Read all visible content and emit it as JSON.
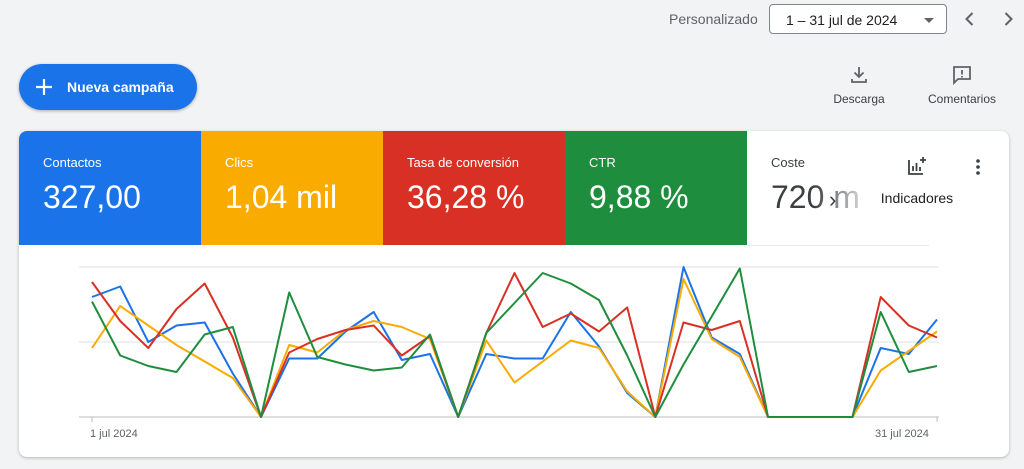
{
  "period": {
    "label": "Personalizado",
    "value": "1 – 31 jul de 2024"
  },
  "fab": {
    "label": "Nueva campaña"
  },
  "tools": {
    "download": "Descarga",
    "feedback": "Comentarios"
  },
  "metrics": [
    {
      "name": "Contactos",
      "value": "327,00",
      "color": "#1a73e8"
    },
    {
      "name": "Clics",
      "value": "1,04 mil",
      "color": "#f9ab00"
    },
    {
      "name": "Tasa de conversión",
      "value": "36,28 %",
      "color": "#d93025"
    },
    {
      "name": "CTR",
      "value": "9,88 %",
      "color": "#1e8e3e"
    },
    {
      "name": "Coste",
      "value": "720 m"
    }
  ],
  "indicators_label": "Indicadores",
  "chart_data": {
    "type": "line",
    "x_labels": [
      "1 jul 2024",
      "31 jul 2024"
    ],
    "x": [
      1,
      2,
      3,
      4,
      5,
      6,
      7,
      8,
      9,
      10,
      11,
      12,
      13,
      14,
      15,
      16,
      17,
      18,
      19,
      20,
      21,
      22,
      23,
      24,
      25,
      26,
      27,
      28,
      29,
      30,
      31
    ],
    "ylim": [
      0,
      1
    ],
    "grid": true,
    "series": [
      {
        "metric": "Contactos",
        "color": "#1a73e8",
        "values": [
          0.8,
          0.87,
          0.5,
          0.61,
          0.63,
          0.29,
          0.0,
          0.39,
          0.39,
          0.57,
          0.7,
          0.38,
          0.42,
          0.0,
          0.42,
          0.39,
          0.39,
          0.7,
          0.47,
          0.16,
          0.0,
          1.0,
          0.53,
          0.42,
          0.0,
          0.0,
          0.0,
          0.0,
          0.46,
          0.42,
          0.65
        ]
      },
      {
        "metric": "Clics",
        "color": "#f9ab00",
        "values": [
          0.46,
          0.74,
          0.61,
          0.48,
          0.37,
          0.26,
          0.0,
          0.48,
          0.43,
          0.58,
          0.64,
          0.6,
          0.52,
          0.0,
          0.51,
          0.23,
          0.37,
          0.51,
          0.46,
          0.17,
          0.0,
          0.92,
          0.52,
          0.4,
          0.0,
          0.0,
          0.0,
          0.0,
          0.31,
          0.44,
          0.57
        ]
      },
      {
        "metric": "Tasa de conversión",
        "color": "#d93025",
        "values": [
          0.9,
          0.64,
          0.46,
          0.72,
          0.89,
          0.53,
          0.0,
          0.43,
          0.52,
          0.58,
          0.61,
          0.41,
          0.54,
          0.0,
          0.56,
          0.96,
          0.6,
          0.69,
          0.57,
          0.73,
          0.0,
          0.63,
          0.58,
          0.64,
          0.0,
          0.0,
          0.0,
          0.0,
          0.8,
          0.61,
          0.53
        ]
      },
      {
        "metric": "CTR",
        "color": "#1e8e3e",
        "values": [
          0.77,
          0.41,
          0.34,
          0.3,
          0.55,
          0.6,
          0.0,
          0.83,
          0.4,
          0.35,
          0.31,
          0.33,
          0.55,
          0.0,
          0.56,
          0.76,
          0.96,
          0.89,
          0.78,
          0.41,
          0.0,
          0.35,
          0.67,
          0.99,
          0.0,
          0.0,
          0.0,
          0.0,
          0.7,
          0.3,
          0.34
        ]
      }
    ]
  }
}
